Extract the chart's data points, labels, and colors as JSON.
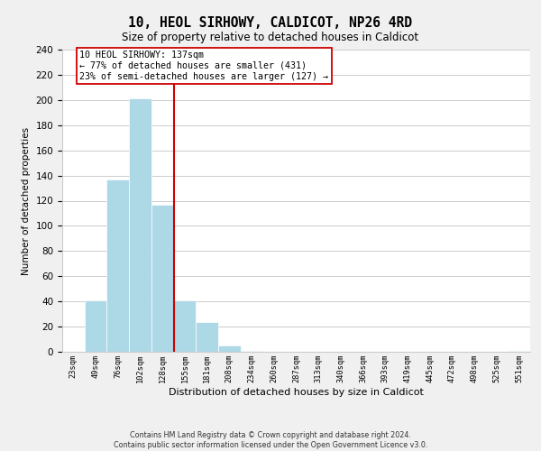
{
  "title": "10, HEOL SIRHOWY, CALDICOT, NP26 4RD",
  "subtitle": "Size of property relative to detached houses in Caldicot",
  "xlabel": "Distribution of detached houses by size in Caldicot",
  "ylabel": "Number of detached properties",
  "bar_labels": [
    "23sqm",
    "49sqm",
    "76sqm",
    "102sqm",
    "128sqm",
    "155sqm",
    "181sqm",
    "208sqm",
    "234sqm",
    "260sqm",
    "287sqm",
    "313sqm",
    "340sqm",
    "366sqm",
    "393sqm",
    "419sqm",
    "445sqm",
    "472sqm",
    "498sqm",
    "525sqm",
    "551sqm"
  ],
  "bar_heights": [
    0,
    41,
    137,
    201,
    117,
    41,
    24,
    5,
    1,
    0,
    0,
    0,
    0,
    0,
    0,
    0,
    0,
    0,
    0,
    0,
    1
  ],
  "bar_color": "#add8e6",
  "vline_x": 4.5,
  "vline_color": "#cc0000",
  "annotation_line1": "10 HEOL SIRHOWY: 137sqm",
  "annotation_line2": "← 77% of detached houses are smaller (431)",
  "annotation_line3": "23% of semi-detached houses are larger (127) →",
  "ylim": [
    0,
    240
  ],
  "yticks": [
    0,
    20,
    40,
    60,
    80,
    100,
    120,
    140,
    160,
    180,
    200,
    220,
    240
  ],
  "footer": "Contains HM Land Registry data © Crown copyright and database right 2024.\nContains public sector information licensed under the Open Government Licence v3.0.",
  "bg_color": "#f0f0f0",
  "plot_bg_color": "#ffffff",
  "grid_color": "#cccccc"
}
